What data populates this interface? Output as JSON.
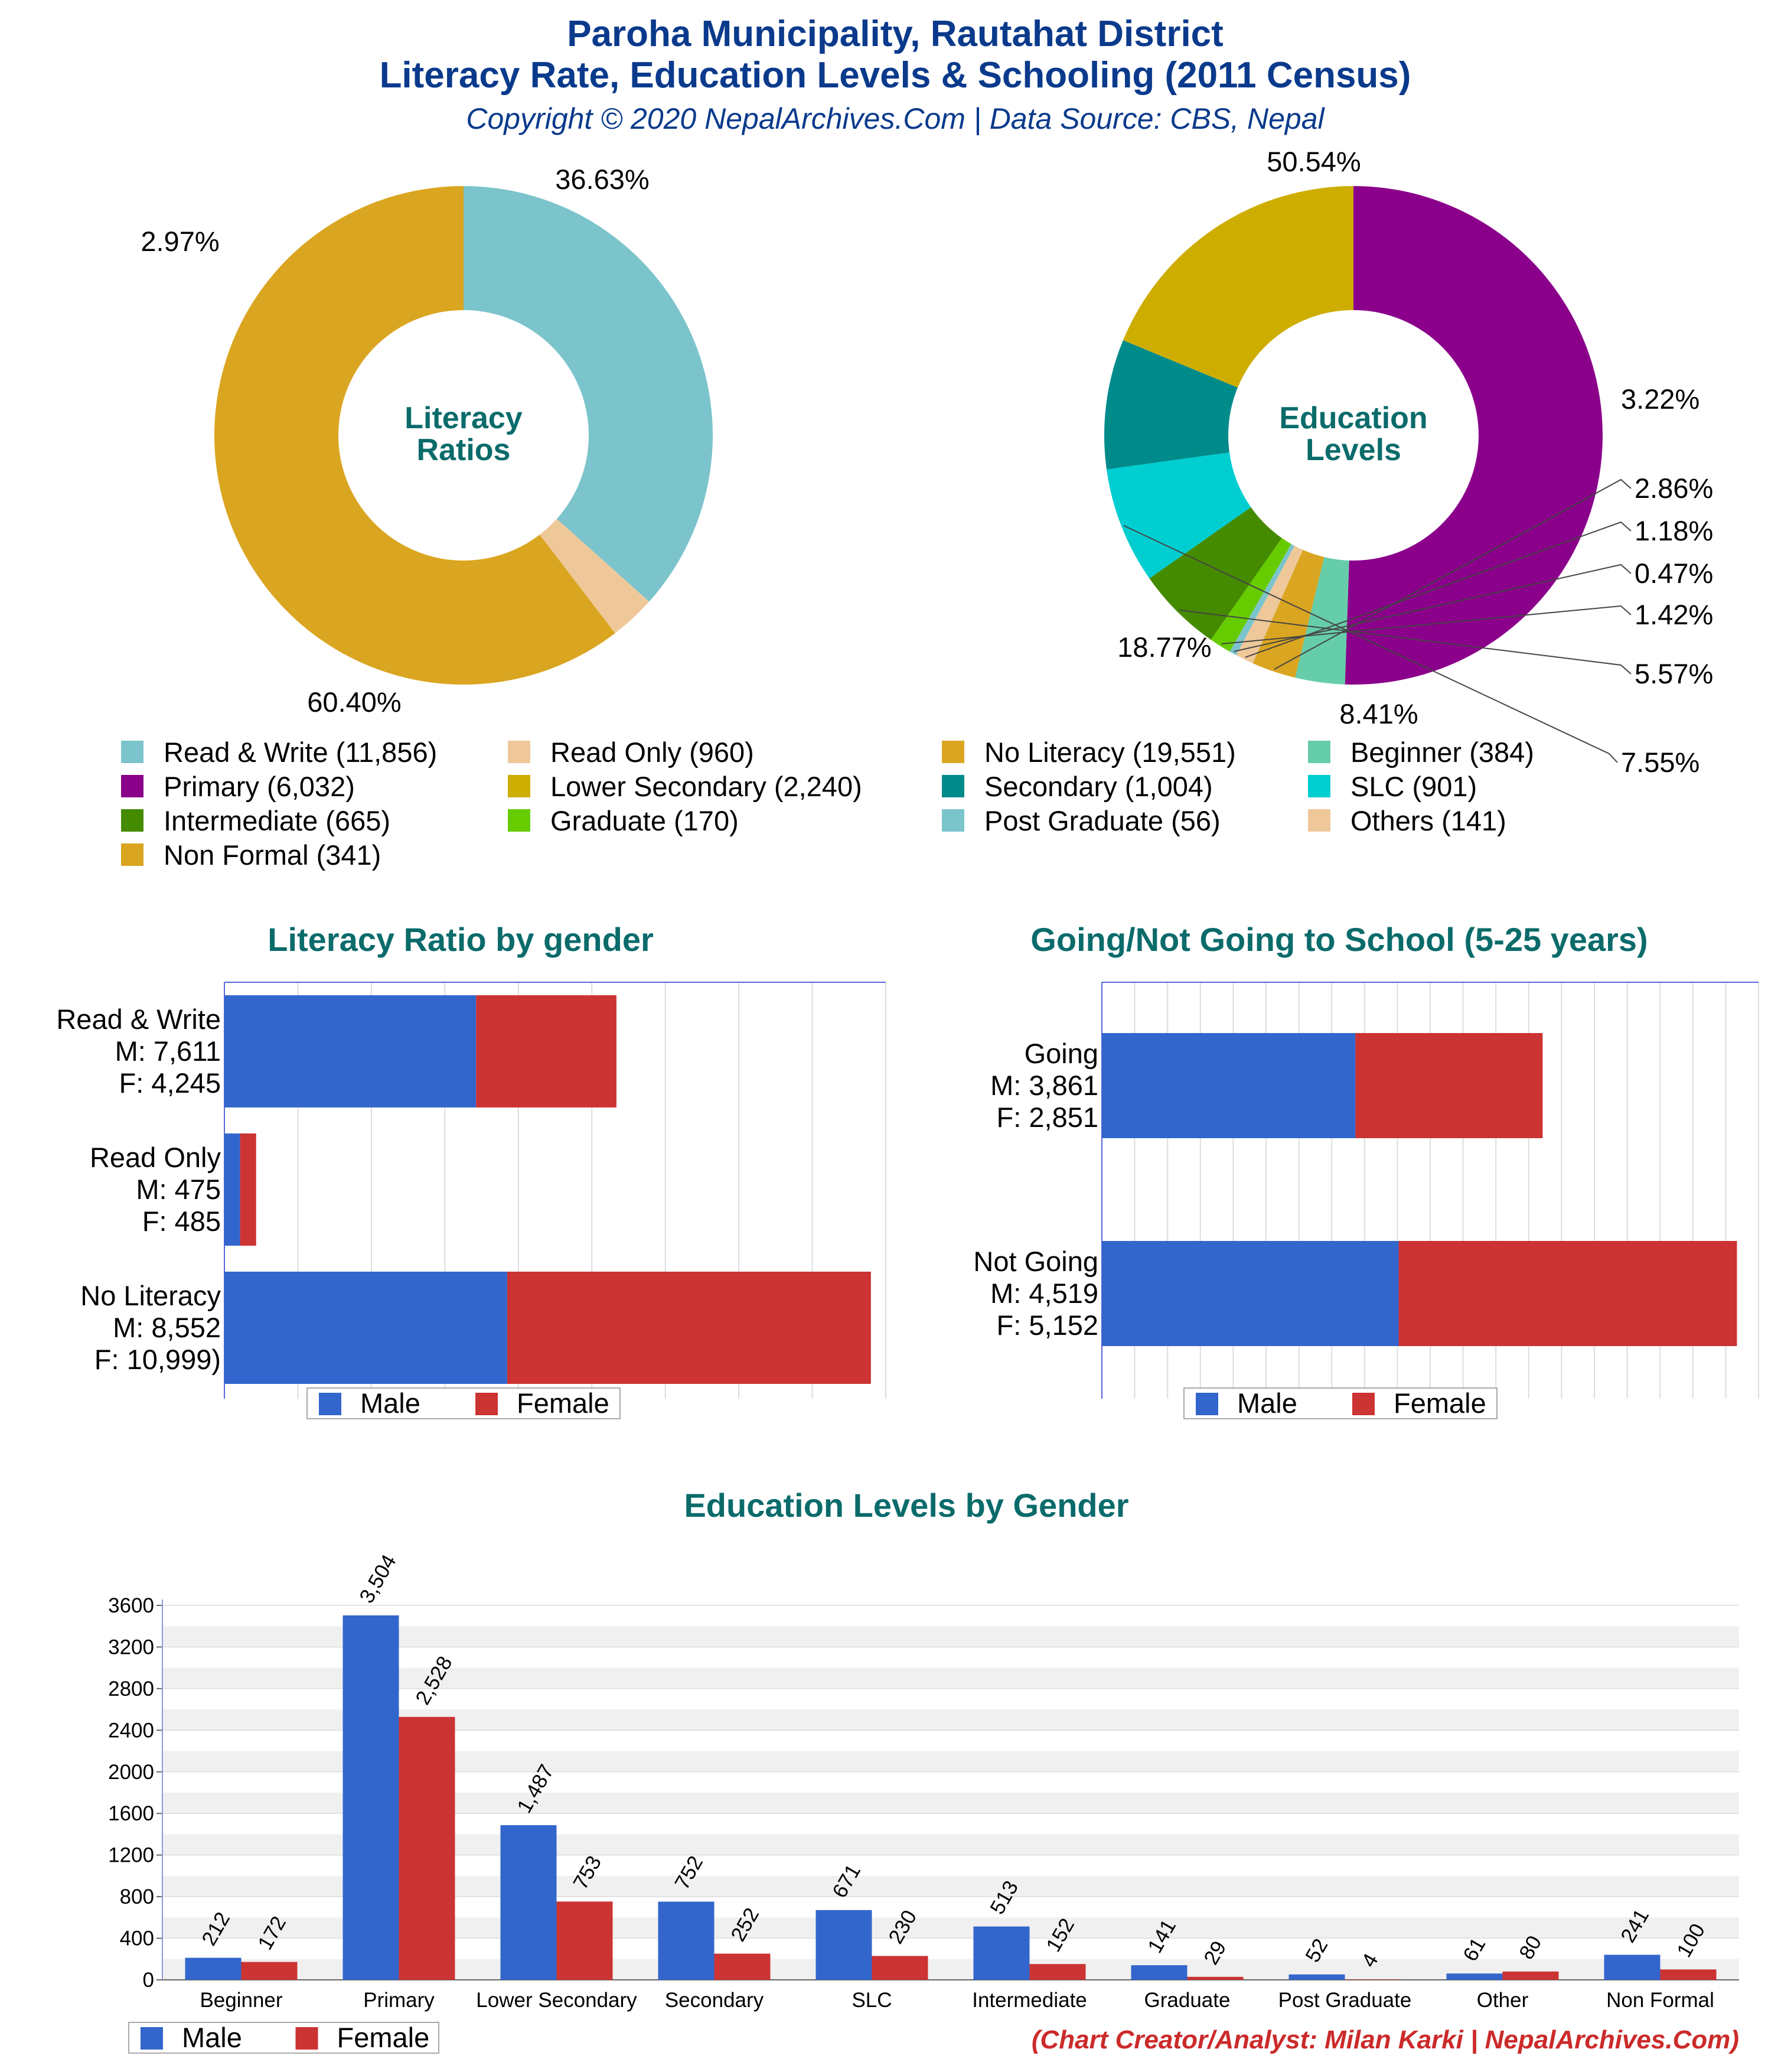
{
  "header": {
    "title_line1": "Paroha Municipality, Rautahat District",
    "title_line2": "Literacy Rate, Education Levels & Schooling (2011 Census)",
    "subtitle": "Copyright © 2020 NepalArchives.Com | Data Source: CBS, Nepal"
  },
  "colors": {
    "male": "#3366cc",
    "female": "#cc3333",
    "title": "#0a3a8c",
    "chart_title": "#0b6b6b",
    "credit": "#cc2a2a"
  },
  "chart_data": [
    {
      "id": "literacy-donut",
      "type": "pie",
      "center_label": [
        "Literacy",
        "Ratios"
      ],
      "slices": [
        {
          "label": "Read & Write",
          "value": 11856,
          "pct_label": "36.63%",
          "color": "#7cc4cc"
        },
        {
          "label": "Read Only",
          "value": 960,
          "pct_label": "2.97%",
          "color": "#efc89a"
        },
        {
          "label": "No Literacy",
          "value": 19551,
          "pct_label": "60.40%",
          "color": "#daa520"
        }
      ]
    },
    {
      "id": "education-donut",
      "type": "pie",
      "center_label": [
        "Education",
        "Levels"
      ],
      "slices": [
        {
          "label": "Primary",
          "value": 6032,
          "pct_label": "50.54%",
          "color": "#8b008b"
        },
        {
          "label": "Beginner",
          "value": 384,
          "pct_label": "3.22%",
          "color": "#66cdaa"
        },
        {
          "label": "Non Formal",
          "value": 341,
          "pct_label": "2.86%",
          "color": "#daa520"
        },
        {
          "label": "Others",
          "value": 141,
          "pct_label": "1.18%",
          "color": "#efc89a"
        },
        {
          "label": "Post Graduate",
          "value": 56,
          "pct_label": "0.47%",
          "color": "#7cc4cc"
        },
        {
          "label": "Graduate",
          "value": 170,
          "pct_label": "1.42%",
          "color": "#66cc00"
        },
        {
          "label": "Intermediate",
          "value": 665,
          "pct_label": "5.57%",
          "color": "#458b00"
        },
        {
          "label": "SLC",
          "value": 901,
          "pct_label": "7.55%",
          "color": "#00ced1"
        },
        {
          "label": "Secondary",
          "value": 1004,
          "pct_label": "8.41%",
          "color": "#008b8b"
        },
        {
          "label": "Lower Secondary",
          "value": 2240,
          "pct_label": "18.77%",
          "color": "#cdad00"
        }
      ]
    },
    {
      "id": "literacy-by-gender",
      "type": "bar",
      "orientation": "horizontal",
      "stacked": true,
      "title": "Literacy Ratio by gender",
      "categories": [
        "Read & Write",
        "Read Only",
        "No Literacy"
      ],
      "category_labels": [
        [
          "Read & Write",
          "M: 7,611",
          "F: 4,245"
        ],
        [
          "Read Only",
          "M: 475",
          "F: 485"
        ],
        [
          "No Literacy",
          "M: 8,552",
          "F: 10,999)"
        ]
      ],
      "series": [
        {
          "name": "Male",
          "values": [
            7611,
            475,
            8552
          ]
        },
        {
          "name": "Female",
          "values": [
            4245,
            485,
            10999
          ]
        }
      ],
      "xlim": [
        0,
        20000
      ],
      "legend": "bottom"
    },
    {
      "id": "school-by-gender",
      "type": "bar",
      "orientation": "horizontal",
      "stacked": true,
      "title": "Going/Not Going to School (5-25 years)",
      "categories": [
        "Going",
        "Not Going"
      ],
      "category_labels": [
        [
          "Going",
          "M: 3,861",
          "F: 2,851"
        ],
        [
          "Not Going",
          "M: 4,519",
          "F: 5,152"
        ]
      ],
      "series": [
        {
          "name": "Male",
          "values": [
            3861,
            4519
          ]
        },
        {
          "name": "Female",
          "values": [
            2851,
            5152
          ]
        }
      ],
      "xlim": [
        0,
        10000
      ],
      "legend": "bottom"
    },
    {
      "id": "education-by-gender",
      "type": "bar",
      "orientation": "vertical",
      "title": "Education Levels by Gender",
      "categories": [
        "Beginner",
        "Primary",
        "Lower Secondary",
        "Secondary",
        "SLC",
        "Intermediate",
        "Graduate",
        "Post Graduate",
        "Other",
        "Non Formal"
      ],
      "series": [
        {
          "name": "Male",
          "values": [
            212,
            3504,
            1487,
            752,
            671,
            513,
            141,
            52,
            61,
            241
          ],
          "labels": [
            "212",
            "3,504",
            "1,487",
            "752",
            "671",
            "513",
            "141",
            "52",
            "61",
            "241"
          ]
        },
        {
          "name": "Female",
          "values": [
            172,
            2528,
            753,
            252,
            230,
            152,
            29,
            4,
            80,
            100
          ],
          "labels": [
            "172",
            "2,528",
            "753",
            "252",
            "230",
            "152",
            "29",
            "4",
            "80",
            "100"
          ]
        }
      ],
      "ylim": [
        0,
        3600
      ],
      "yticks": [
        "0",
        "400",
        "800",
        "1200",
        "1600",
        "2000",
        "2400",
        "2800",
        "3200",
        "3600"
      ],
      "grid": true,
      "legend": "bottom-left"
    }
  ],
  "legend_main": [
    {
      "text": "Read & Write (11,856)",
      "color": "#7cc4cc"
    },
    {
      "text": "Read Only (960)",
      "color": "#efc89a"
    },
    {
      "text": "No Literacy (19,551)",
      "color": "#daa520"
    },
    {
      "text": "Beginner (384)",
      "color": "#66cdaa"
    },
    {
      "text": "Primary (6,032)",
      "color": "#8b008b"
    },
    {
      "text": "Lower Secondary (2,240)",
      "color": "#cdad00"
    },
    {
      "text": "Secondary (1,004)",
      "color": "#008b8b"
    },
    {
      "text": "SLC (901)",
      "color": "#00ced1"
    },
    {
      "text": "Intermediate (665)",
      "color": "#458b00"
    },
    {
      "text": "Graduate (170)",
      "color": "#66cc00"
    },
    {
      "text": "Post Graduate (56)",
      "color": "#7cc4cc"
    },
    {
      "text": "Others (141)",
      "color": "#efc89a"
    },
    {
      "text": "Non Formal (341)",
      "color": "#daa520"
    }
  ],
  "legend_gender": {
    "male": "Male",
    "female": "Female"
  },
  "footer": {
    "credit": "(Chart Creator/Analyst: Milan Karki | NepalArchives.Com)"
  }
}
